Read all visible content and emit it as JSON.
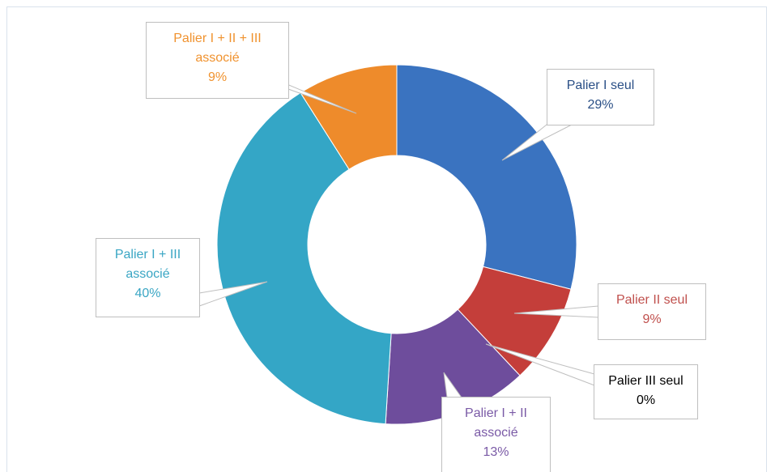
{
  "chart_data": {
    "type": "donut",
    "categories": [
      "Palier I seul",
      "Palier II seul",
      "Palier III seul",
      "Palier I + II associé",
      "Palier I + III associé",
      "Palier I + II + III associé"
    ],
    "values": [
      29,
      9,
      0,
      13,
      40,
      9
    ],
    "value_labels": [
      "29%",
      "9%",
      "0%",
      "13%",
      "40%",
      "9%"
    ],
    "colors": [
      "#3a73c0",
      "#c43e3a",
      "#000000",
      "#6e4d9c",
      "#34a6c6",
      "#ee8b2b"
    ],
    "label_colors": [
      "#2a4f86",
      "#c0504d",
      "#000000",
      "#7a5aa6",
      "#3aa6c4",
      "#f0922e"
    ]
  }
}
